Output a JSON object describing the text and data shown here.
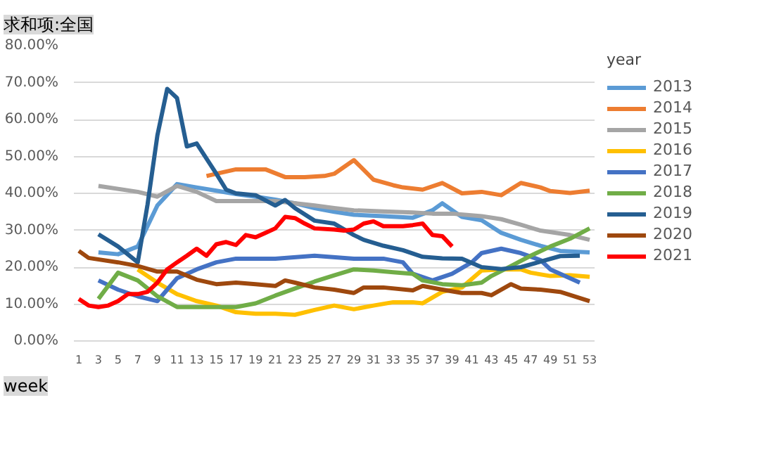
{
  "chart_data": {
    "type": "line",
    "title": "求和项:全国",
    "xlabel": "week",
    "legend_title": "year",
    "xlim": [
      0.5,
      53.5
    ],
    "xticks": [
      1,
      3,
      5,
      7,
      9,
      11,
      13,
      15,
      17,
      19,
      21,
      23,
      25,
      27,
      29,
      31,
      33,
      35,
      37,
      39,
      41,
      43,
      45,
      47,
      49,
      51,
      53
    ],
    "ylim": [
      0,
      80
    ],
    "yticks": [
      {
        "value": 0,
        "label": "0.00%"
      },
      {
        "value": 10,
        "label": "10.00%"
      },
      {
        "value": 20,
        "label": "20.00%"
      },
      {
        "value": 30,
        "label": "30.00%"
      },
      {
        "value": 40,
        "label": "40.00%"
      },
      {
        "value": 50,
        "label": "50.00%"
      },
      {
        "value": 60,
        "label": "60.00%"
      },
      {
        "value": 70,
        "label": "70.00%"
      },
      {
        "value": 80,
        "label": "80.00%"
      }
    ],
    "grid": "y",
    "legend": "right",
    "marker": "none",
    "line_style": "solid",
    "series": [
      {
        "name": "2013",
        "color": "#5b9bd5",
        "x": [
          3,
          5,
          7,
          9,
          11,
          13,
          15,
          17,
          19,
          21,
          23,
          25,
          27,
          29,
          32,
          35,
          37,
          38,
          40,
          42,
          44,
          46,
          48,
          50,
          53
        ],
        "values": [
          24,
          23.5,
          25.6,
          36.7,
          42.5,
          41.6,
          40.7,
          39.8,
          39.1,
          38.3,
          37.3,
          36,
          35,
          34.2,
          33.8,
          33.4,
          35.4,
          37.3,
          33.6,
          32.7,
          29.3,
          27.4,
          25.8,
          24.4,
          24
        ]
      },
      {
        "name": "2014",
        "color": "#ed7d31",
        "x": [
          14,
          15,
          17,
          20,
          22,
          24,
          26,
          27,
          29,
          31,
          33,
          34,
          36,
          38,
          40,
          42,
          44,
          46,
          48,
          49,
          51,
          53
        ],
        "values": [
          44.7,
          45.3,
          46.5,
          46.5,
          44.4,
          44.4,
          44.7,
          45.3,
          49,
          43.7,
          42.2,
          41.6,
          41,
          42.8,
          40,
          40.4,
          39.5,
          42.8,
          41.6,
          40.6,
          40.1,
          40.7
        ]
      },
      {
        "name": "2015",
        "color": "#a5a5a5",
        "x": [
          3,
          7,
          9,
          11,
          13,
          15,
          19,
          21,
          25,
          27,
          29,
          32,
          35,
          37,
          39,
          42,
          44,
          46,
          48,
          51,
          53
        ],
        "values": [
          42,
          40.4,
          39.1,
          42,
          40.4,
          37.9,
          37.9,
          37.9,
          36.7,
          36,
          35.4,
          35.1,
          34.8,
          34.5,
          34.5,
          33.8,
          33,
          31.5,
          29.9,
          28.7,
          27.4
        ]
      },
      {
        "name": "2016",
        "color": "#ffc000",
        "x": [
          7,
          9,
          11,
          13,
          15,
          17,
          19,
          21,
          23,
          25,
          27,
          29,
          31,
          33,
          35,
          36,
          38,
          40,
          42,
          44,
          46,
          47,
          49,
          51,
          53
        ],
        "values": [
          19.4,
          15.8,
          12.7,
          10.8,
          9.6,
          7.8,
          7.4,
          7.4,
          7.1,
          8.4,
          9.6,
          8.6,
          9.6,
          10.5,
          10.5,
          10.2,
          13.3,
          14.5,
          19.1,
          19.4,
          19.4,
          18.5,
          17.6,
          17.8,
          17.4
        ]
      },
      {
        "name": "2017",
        "color": "#4472c4",
        "x": [
          3,
          5,
          7,
          9,
          10,
          11,
          13,
          15,
          17,
          21,
          25,
          29,
          32,
          34,
          35,
          37,
          39,
          41,
          42,
          44,
          46,
          48,
          49,
          52
        ],
        "values": [
          16.4,
          13.9,
          12.1,
          10.8,
          13.9,
          17,
          19.4,
          21.3,
          22.3,
          22.3,
          23.1,
          22.3,
          22.3,
          21.3,
          18.2,
          16.4,
          18.2,
          21.3,
          23.8,
          25,
          23.8,
          21.9,
          19.4,
          15.8
        ]
      },
      {
        "name": "2018",
        "color": "#70ad47",
        "x": [
          3,
          5,
          7,
          9,
          11,
          17,
          19,
          21,
          23,
          25,
          27,
          29,
          31,
          33,
          35,
          36,
          38,
          40,
          42,
          43,
          45,
          47,
          49,
          51,
          53
        ],
        "values": [
          11.4,
          18.5,
          16.4,
          12.1,
          9.2,
          9.2,
          10.2,
          12.3,
          14.2,
          16.1,
          17.8,
          19.4,
          19.1,
          18.6,
          18.2,
          16.4,
          15.4,
          15.1,
          15.8,
          17.6,
          20.3,
          23.1,
          25.6,
          27.7,
          30.5
        ]
      },
      {
        "name": "2019",
        "color": "#255e91",
        "x": [
          3,
          5,
          7,
          8,
          9,
          10,
          11,
          12,
          13,
          15,
          16,
          17,
          19,
          21,
          22,
          23,
          25,
          27,
          29,
          30,
          32,
          34,
          36,
          38,
          40,
          42,
          44,
          46,
          48,
          50,
          52
        ],
        "values": [
          28.9,
          25.6,
          21.3,
          37,
          55.7,
          68.3,
          65.8,
          52.7,
          53.5,
          45.3,
          41,
          40,
          39.5,
          36.7,
          38.2,
          36,
          32.6,
          31.8,
          28.7,
          27.4,
          25.8,
          24.6,
          22.8,
          22.4,
          22.3,
          20,
          19.5,
          20,
          21.5,
          23,
          23.1
        ]
      },
      {
        "name": "2020",
        "color": "#9e480e",
        "x": [
          1,
          2,
          5,
          7,
          9,
          11,
          13,
          15,
          17,
          19,
          21,
          22,
          23,
          25,
          27,
          29,
          30,
          32,
          35,
          36,
          38,
          40,
          42,
          43,
          45,
          46,
          48,
          50,
          53
        ],
        "values": [
          24.4,
          22.5,
          21.3,
          20.3,
          18.8,
          18.8,
          16.6,
          15.4,
          15.8,
          15.4,
          14.9,
          16.4,
          15.8,
          14.5,
          13.9,
          13,
          14.5,
          14.5,
          13.7,
          14.9,
          13.9,
          13,
          13,
          12.4,
          15.4,
          14.2,
          13.9,
          13.3,
          10.8
        ]
      },
      {
        "name": "2021",
        "color": "#ff0000",
        "x": [
          1,
          2,
          3,
          4,
          5,
          6,
          7,
          8,
          9,
          10,
          11,
          12,
          13,
          14,
          15,
          16,
          17,
          18,
          19,
          20,
          21,
          22,
          23,
          24,
          25,
          27,
          28,
          29,
          30,
          31,
          32,
          34,
          35,
          36,
          37,
          38,
          39
        ],
        "values": [
          11.4,
          9.6,
          9.2,
          9.6,
          10.8,
          12.7,
          12.7,
          13.3,
          15.8,
          19.4,
          21.3,
          23.1,
          25,
          23.1,
          26.2,
          26.8,
          26,
          28.7,
          28.1,
          29.3,
          30.5,
          33.6,
          33.3,
          31.8,
          30.5,
          30.2,
          29.9,
          30.2,
          31.8,
          32.4,
          31.1,
          31.1,
          31.4,
          31.8,
          28.7,
          28.4,
          25.6
        ]
      }
    ]
  }
}
